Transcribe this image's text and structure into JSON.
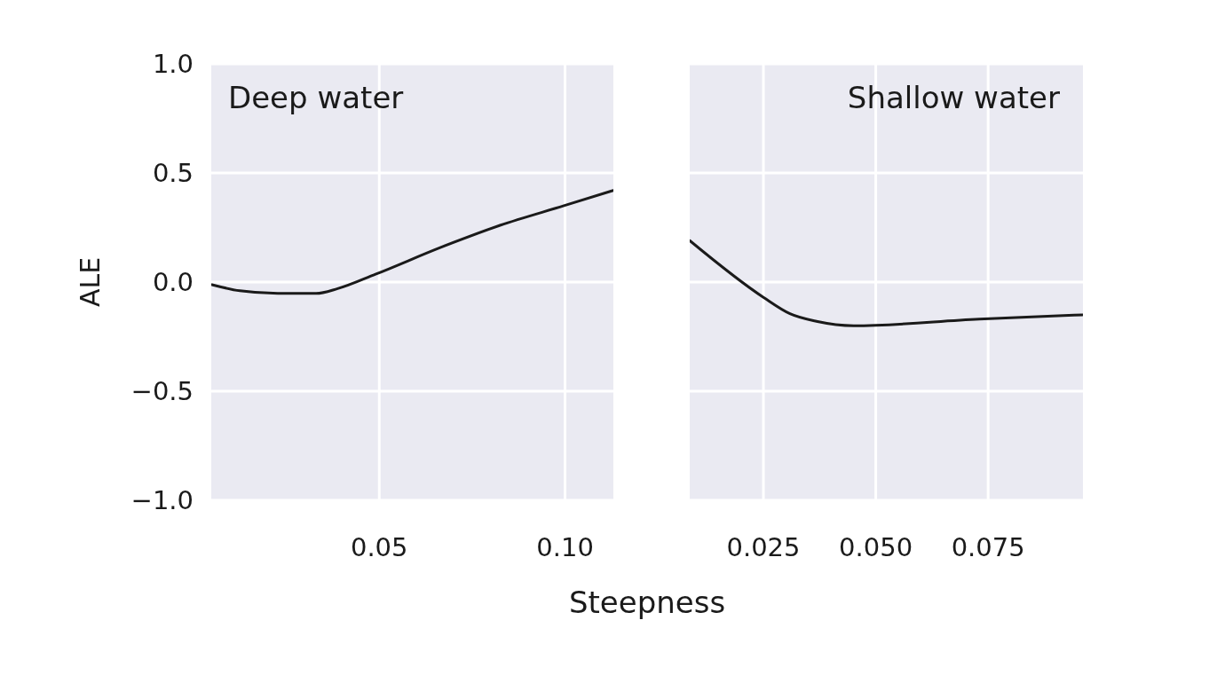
{
  "chart_data": [
    {
      "type": "line",
      "title": "Deep water",
      "xlabel": "Steepness",
      "ylabel": "ALE",
      "x": [
        0.005,
        0.0125,
        0.0227,
        0.033,
        0.0388,
        0.049,
        0.0667,
        0.0825,
        0.0997,
        0.113
      ],
      "series": [
        {
          "color": "#1a1a1a",
          "values": [
            -0.012,
            -0.04,
            -0.052,
            -0.052,
            -0.03,
            0.036,
            0.16,
            0.26,
            0.35,
            0.42
          ]
        }
      ],
      "xlim": [
        0.0048,
        0.113
      ],
      "xticks": [
        0.05,
        {
          "value": 0.1,
          "label": "0.10"
        }
      ],
      "ylim": [
        -1,
        1
      ],
      "yticks": [
        {
          "value": -1,
          "label": "−1.0"
        },
        {
          "value": -0.5,
          "label": "−0.5"
        },
        {
          "value": 0,
          "label": "0.0"
        },
        0.5,
        {
          "value": 1,
          "label": "1.0"
        }
      ],
      "grid": true
    },
    {
      "type": "line",
      "title": "Shallow water",
      "x": [
        0.0086,
        0.025,
        0.0309,
        0.0368,
        0.0451,
        0.073,
        0.096
      ],
      "series": [
        {
          "color": "#1a1a1a",
          "values": [
            0.19,
            -0.07,
            -0.145,
            -0.18,
            -0.2,
            -0.17,
            -0.15
          ]
        }
      ],
      "xlim": [
        0.0086,
        0.0961
      ],
      "xticks": [
        0.025,
        {
          "value": 0.05,
          "label": "0.050"
        },
        0.075
      ],
      "ylim": [
        -1,
        1
      ],
      "yticks": [
        -1,
        -0.5,
        0,
        0.5,
        1
      ],
      "grid": true,
      "tick_labels": "x"
    }
  ]
}
